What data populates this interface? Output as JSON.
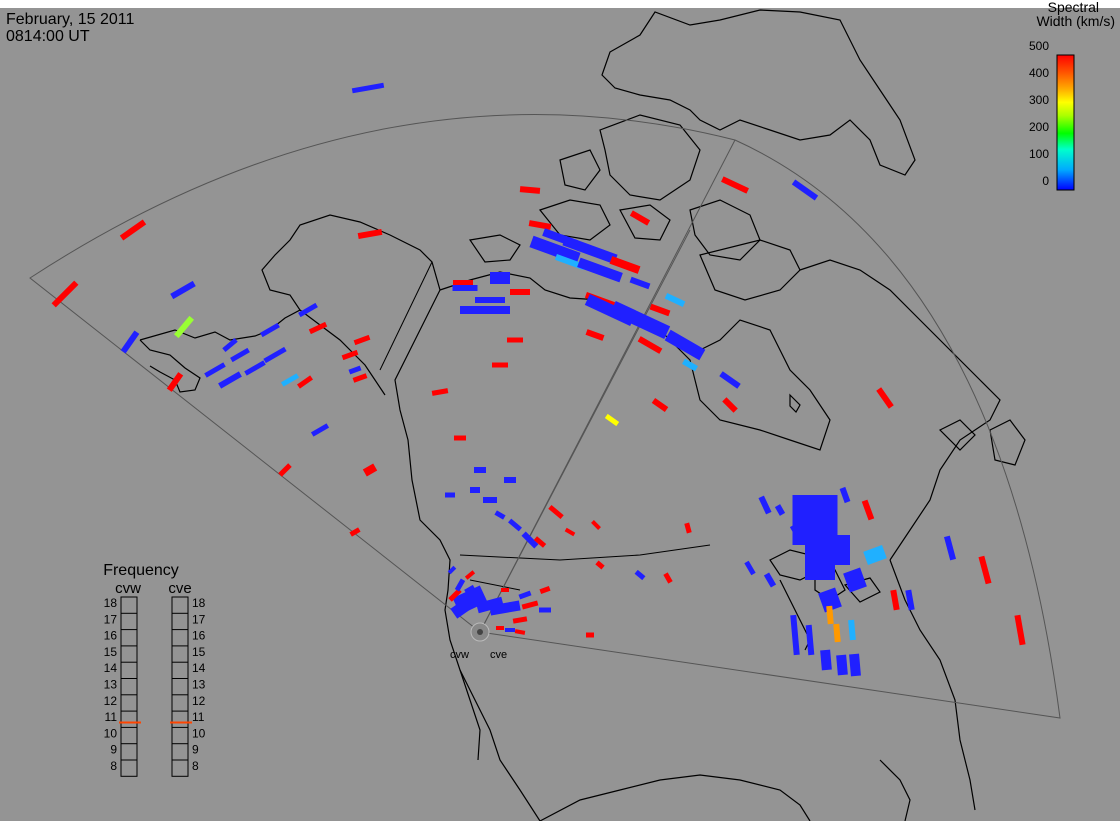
{
  "header": {
    "date": "February, 15 2011",
    "time": "0814:00 UT"
  },
  "colorbar": {
    "title_line1": "Spectral",
    "title_line2": "Width (km/s)",
    "ticks": [
      "500",
      "400",
      "300",
      "200",
      "100",
      "0"
    ],
    "colors": [
      "#0000ff",
      "#00aaff",
      "#00ffcc",
      "#00ff00",
      "#aaff00",
      "#ffff00",
      "#ffaa00",
      "#ff5500",
      "#ff0000"
    ]
  },
  "frequency_panel": {
    "title": "Frequency",
    "radars": [
      "cvw",
      "cve"
    ],
    "scale": [
      "18",
      "17",
      "16",
      "15",
      "14",
      "13",
      "12",
      "11",
      "10",
      "9",
      "8"
    ],
    "cvw_value_mhz": 10.8,
    "cve_value_mhz": 10.8,
    "indicator_color": "#ff4400"
  },
  "map": {
    "background_color": "#949494",
    "coastline_color": "#000000",
    "fov_color": "#555555",
    "radar_sites": [
      "cvw",
      "cve"
    ]
  },
  "colors": {
    "blue": "#2020ff",
    "red": "#ff0000",
    "cyan": "#20b0ff",
    "yellow": "#ffff00",
    "orange": "#ff9900",
    "green": "#99ff33"
  }
}
